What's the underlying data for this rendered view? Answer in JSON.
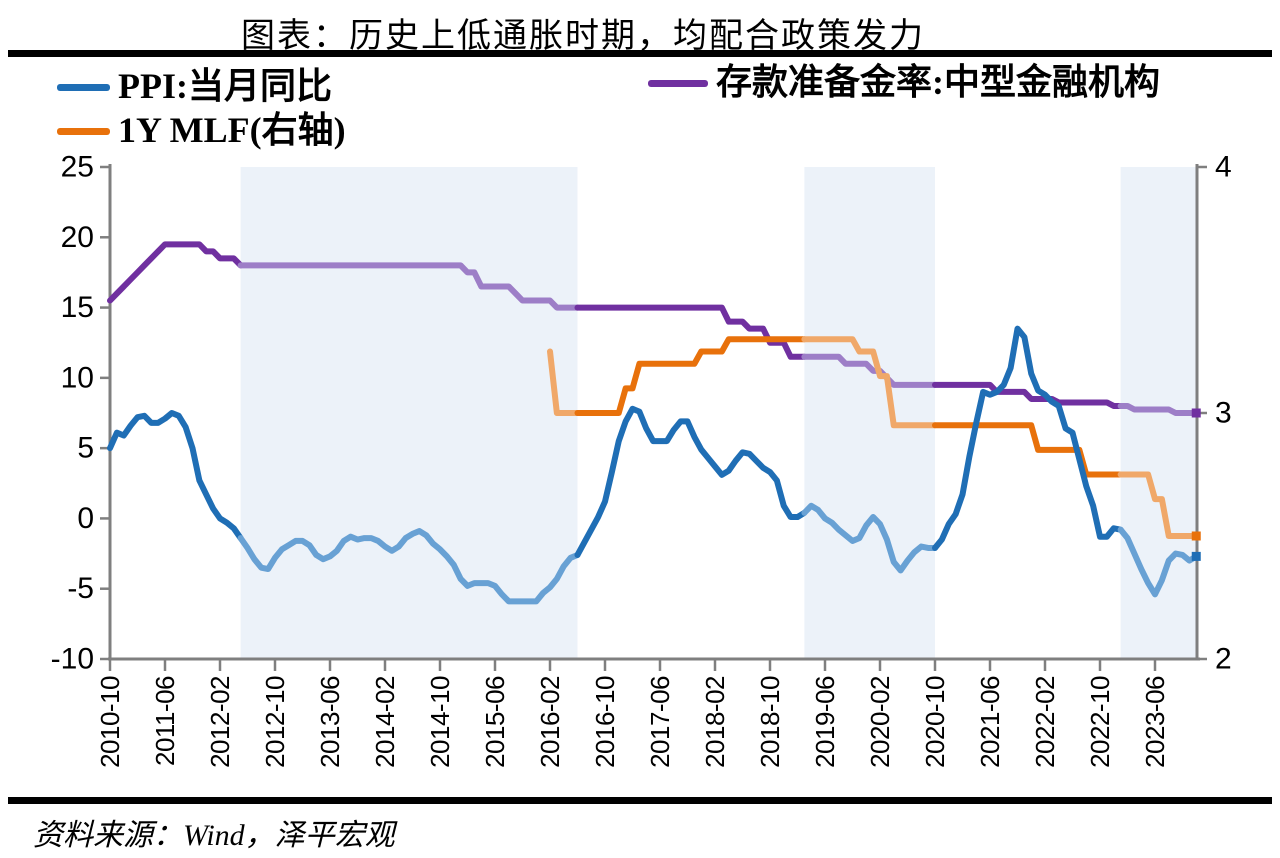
{
  "title": "图表：历史上低通胀时期，均配合政策发力",
  "source_note": "资料来源：Wind，泽平宏观",
  "legend": [
    {
      "label": "PPI:当月同比",
      "color": "#1f6eb5"
    },
    {
      "label": "存款准备金率:中型金融机构",
      "color": "#7030a0"
    },
    {
      "label": "1Y MLF(右轴)",
      "color": "#e8710b"
    }
  ],
  "colors": {
    "highlight_region": "#ecf2f9",
    "axis": "#7f7f7f",
    "bar": "#000000"
  },
  "chart_data": {
    "type": "line",
    "grid": false,
    "legend_position": "top",
    "start_month": "2010-10",
    "x_tick_labels": [
      "2010-10",
      "2011-06",
      "2012-02",
      "2012-10",
      "2013-06",
      "2014-02",
      "2014-10",
      "2015-06",
      "2016-02",
      "2016-10",
      "2017-06",
      "2018-02",
      "2018-10",
      "2019-06",
      "2020-02",
      "2020-10",
      "2021-06",
      "2022-02",
      "2022-10",
      "2023-06"
    ],
    "left_axis": {
      "min": -10,
      "max": 25,
      "ticks": [
        25,
        20,
        15,
        10,
        5,
        0,
        -5,
        -10
      ]
    },
    "right_axis": {
      "min": 2,
      "max": 4,
      "ticks": [
        4,
        3,
        2
      ]
    },
    "highlight_regions": [
      [
        "2012-05",
        "2016-06"
      ],
      [
        "2019-03",
        "2020-10"
      ],
      [
        "2023-01",
        "2023-12"
      ]
    ],
    "series": [
      {
        "name": "存款准备金率:中型金融机构",
        "axis": "left",
        "color_dark": "#7030a0",
        "color_light": "#9d7ec7",
        "values": [
          15.5,
          16.0,
          16.5,
          17.0,
          17.5,
          18.0,
          18.5,
          19.0,
          19.5,
          19.5,
          19.5,
          19.5,
          19.5,
          19.5,
          19.0,
          19.0,
          18.5,
          18.5,
          18.5,
          18.0,
          18.0,
          18.0,
          18.0,
          18.0,
          18.0,
          18.0,
          18.0,
          18.0,
          18.0,
          18.0,
          18.0,
          18.0,
          18.0,
          18.0,
          18.0,
          18.0,
          18.0,
          18.0,
          18.0,
          18.0,
          18.0,
          18.0,
          18.0,
          18.0,
          18.0,
          18.0,
          18.0,
          18.0,
          18.0,
          18.0,
          18.0,
          18.0,
          17.5,
          17.5,
          16.5,
          16.5,
          16.5,
          16.5,
          16.5,
          16.0,
          15.5,
          15.5,
          15.5,
          15.5,
          15.5,
          15.0,
          15.0,
          15.0,
          15.0,
          15.0,
          15.0,
          15.0,
          15.0,
          15.0,
          15.0,
          15.0,
          15.0,
          15.0,
          15.0,
          15.0,
          15.0,
          15.0,
          15.0,
          15.0,
          15.0,
          15.0,
          15.0,
          15.0,
          15.0,
          15.0,
          14.0,
          14.0,
          14.0,
          13.5,
          13.5,
          13.5,
          12.5,
          12.5,
          12.5,
          11.5,
          11.5,
          11.5,
          11.5,
          11.5,
          11.5,
          11.5,
          11.5,
          11.0,
          11.0,
          11.0,
          11.0,
          10.5,
          10.5,
          10.0,
          9.5,
          9.5,
          9.5,
          9.5,
          9.5,
          9.5,
          9.5,
          9.5,
          9.5,
          9.5,
          9.5,
          9.5,
          9.5,
          9.5,
          9.5,
          9.0,
          9.0,
          9.0,
          9.0,
          9.0,
          8.5,
          8.5,
          8.5,
          8.5,
          8.25,
          8.25,
          8.25,
          8.25,
          8.25,
          8.25,
          8.25,
          8.25,
          8.0,
          8.0,
          8.0,
          7.75,
          7.75,
          7.75,
          7.75,
          7.75,
          7.75,
          7.5,
          7.5,
          7.5,
          7.5
        ]
      },
      {
        "name": "1Y MLF(右轴)",
        "axis": "right",
        "color_dark": "#e8710b",
        "color_light": "#f0a869",
        "values": [
          null,
          null,
          null,
          null,
          null,
          null,
          null,
          null,
          null,
          null,
          null,
          null,
          null,
          null,
          null,
          null,
          null,
          null,
          null,
          null,
          null,
          null,
          null,
          null,
          null,
          null,
          null,
          null,
          null,
          null,
          null,
          null,
          null,
          null,
          null,
          null,
          null,
          null,
          null,
          null,
          null,
          null,
          null,
          null,
          null,
          null,
          null,
          null,
          null,
          null,
          null,
          null,
          null,
          null,
          null,
          null,
          null,
          null,
          null,
          null,
          null,
          null,
          null,
          null,
          3.25,
          3.0,
          3.0,
          3.0,
          3.0,
          3.0,
          3.0,
          3.0,
          3.0,
          3.0,
          3.0,
          3.1,
          3.1,
          3.2,
          3.2,
          3.2,
          3.2,
          3.2,
          3.2,
          3.2,
          3.2,
          3.2,
          3.25,
          3.25,
          3.25,
          3.25,
          3.3,
          3.3,
          3.3,
          3.3,
          3.3,
          3.3,
          3.3,
          3.3,
          3.3,
          3.3,
          3.3,
          3.3,
          3.3,
          3.3,
          3.3,
          3.3,
          3.3,
          3.3,
          3.3,
          3.25,
          3.25,
          3.25,
          3.15,
          3.15,
          2.95,
          2.95,
          2.95,
          2.95,
          2.95,
          2.95,
          2.95,
          2.95,
          2.95,
          2.95,
          2.95,
          2.95,
          2.95,
          2.95,
          2.95,
          2.95,
          2.95,
          2.95,
          2.95,
          2.95,
          2.95,
          2.85,
          2.85,
          2.85,
          2.85,
          2.85,
          2.85,
          2.85,
          2.75,
          2.75,
          2.75,
          2.75,
          2.75,
          2.75,
          2.75,
          2.75,
          2.75,
          2.75,
          2.65,
          2.65,
          2.5,
          2.5,
          2.5,
          2.5,
          2.5
        ]
      },
      {
        "name": "PPI:当月同比",
        "axis": "left",
        "color_dark": "#1f6eb5",
        "color_light": "#68a1d4",
        "values": [
          5.0,
          6.1,
          5.9,
          6.6,
          7.2,
          7.3,
          6.8,
          6.8,
          7.1,
          7.5,
          7.3,
          6.5,
          5.0,
          2.7,
          1.7,
          0.7,
          0.0,
          -0.3,
          -0.7,
          -1.4,
          -2.1,
          -2.9,
          -3.5,
          -3.6,
          -2.8,
          -2.2,
          -1.9,
          -1.6,
          -1.6,
          -1.9,
          -2.6,
          -2.9,
          -2.7,
          -2.3,
          -1.6,
          -1.3,
          -1.5,
          -1.4,
          -1.4,
          -1.6,
          -2.0,
          -2.3,
          -2.0,
          -1.4,
          -1.1,
          -0.9,
          -1.2,
          -1.8,
          -2.2,
          -2.7,
          -3.3,
          -4.3,
          -4.8,
          -4.6,
          -4.6,
          -4.6,
          -4.8,
          -5.4,
          -5.9,
          -5.9,
          -5.9,
          -5.9,
          -5.9,
          -5.3,
          -4.9,
          -4.3,
          -3.4,
          -2.8,
          -2.6,
          -1.7,
          -0.8,
          0.1,
          1.2,
          3.3,
          5.5,
          6.9,
          7.8,
          7.6,
          6.4,
          5.5,
          5.5,
          5.5,
          6.3,
          6.9,
          6.9,
          5.8,
          4.9,
          4.3,
          3.7,
          3.1,
          3.4,
          4.1,
          4.7,
          4.6,
          4.1,
          3.6,
          3.3,
          2.7,
          0.9,
          0.1,
          0.1,
          0.4,
          0.9,
          0.6,
          0.0,
          -0.3,
          -0.8,
          -1.2,
          -1.6,
          -1.4,
          -0.5,
          0.1,
          -0.4,
          -1.5,
          -3.1,
          -3.7,
          -3.0,
          -2.4,
          -2.0,
          -2.1,
          -2.1,
          -1.5,
          -0.4,
          0.3,
          1.7,
          4.4,
          6.8,
          9.0,
          8.8,
          9.0,
          9.5,
          10.7,
          13.5,
          12.9,
          10.3,
          9.1,
          8.8,
          8.3,
          8.0,
          6.4,
          6.1,
          4.2,
          2.3,
          0.9,
          -1.3,
          -1.3,
          -0.7,
          -0.8,
          -1.4,
          -2.5,
          -3.6,
          -4.6,
          -5.4,
          -4.4,
          -3.0,
          -2.5,
          -2.6,
          -3.0,
          -2.7
        ]
      }
    ]
  }
}
